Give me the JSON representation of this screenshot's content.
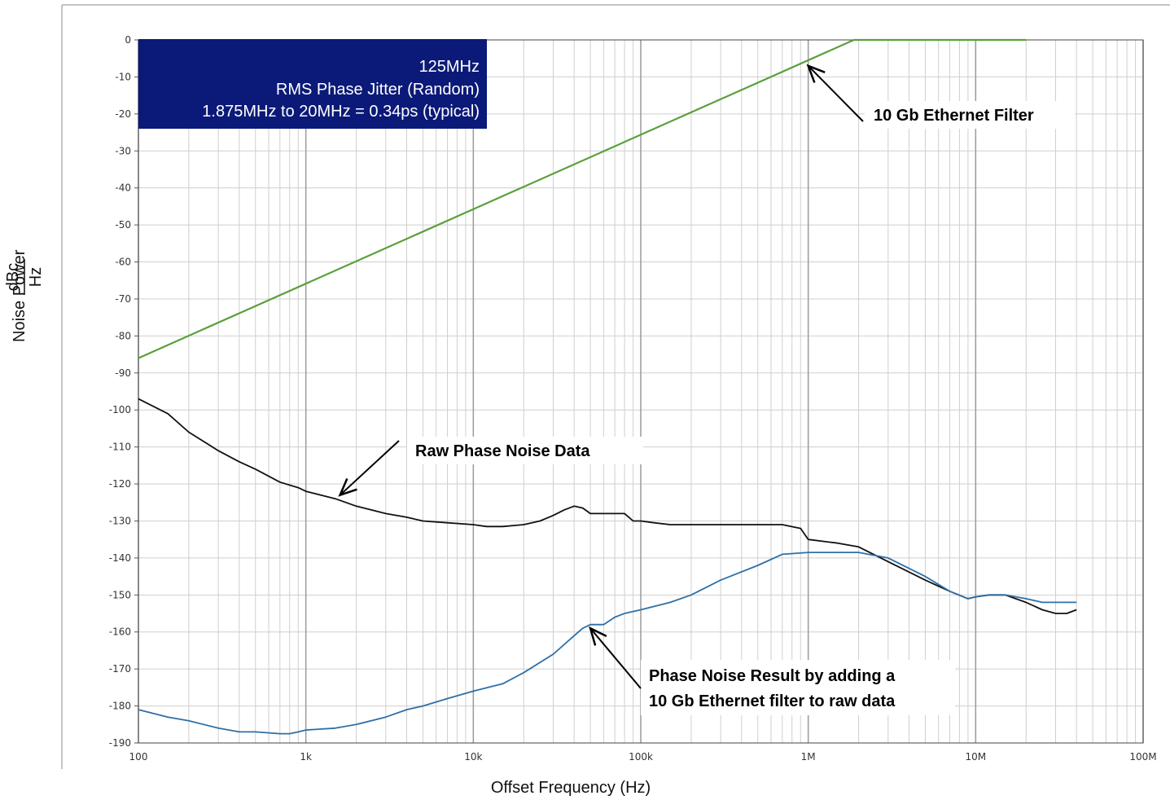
{
  "chart_data": {
    "type": "line",
    "title": "",
    "xlabel": "Offset Frequency (Hz)",
    "ylabel": "Noise Power",
    "ylabel_unit_numerator": "dBc",
    "ylabel_unit_denominator": "Hz",
    "x_scale": "log",
    "xlim": [
      100,
      100000000
    ],
    "ylim": [
      -190,
      0
    ],
    "x_ticks": [
      {
        "value": 100,
        "label": "100"
      },
      {
        "value": 1000,
        "label": "1k"
      },
      {
        "value": 10000,
        "label": "10k"
      },
      {
        "value": 100000,
        "label": "100k"
      },
      {
        "value": 1000000,
        "label": "1M"
      },
      {
        "value": 10000000,
        "label": "10M"
      },
      {
        "value": 100000000,
        "label": "100M"
      }
    ],
    "y_ticks": [
      0,
      -10,
      -20,
      -30,
      -40,
      -50,
      -60,
      -70,
      -80,
      -90,
      -100,
      -110,
      -120,
      -130,
      -140,
      -150,
      -160,
      -170,
      -180,
      -190
    ],
    "grid": true,
    "legend": "none",
    "info_box": {
      "lines": [
        "125MHz",
        "RMS Phase Jitter (Random)",
        "1.875MHz to 20MHz = 0.34ps (typical)"
      ],
      "background": "#0b1a78",
      "text_color": "#ffffff"
    },
    "annotations": [
      {
        "id": "filter",
        "lines": [
          "10 Gb Ethernet Filter"
        ],
        "arrow_to": [
          1000000,
          -7
        ]
      },
      {
        "id": "raw",
        "lines": [
          "Raw Phase Noise Data"
        ],
        "arrow_to": [
          1600,
          -123
        ]
      },
      {
        "id": "result",
        "lines": [
          "Phase Noise Result by adding a",
          "10 Gb Ethernet filter to raw data"
        ],
        "arrow_to": [
          50000,
          -159
        ]
      }
    ],
    "series": [
      {
        "id": "filter",
        "color": "#5aa03c",
        "x": [
          100,
          1875000,
          20000000
        ],
        "y": [
          -86,
          0,
          0
        ]
      },
      {
        "id": "raw",
        "color": "#111111",
        "x": [
          100,
          150,
          200,
          300,
          400,
          500,
          700,
          900,
          1000,
          1500,
          2000,
          3000,
          4000,
          5000,
          7000,
          10000,
          12000,
          15000,
          20000,
          25000,
          30000,
          35000,
          40000,
          45000,
          50000,
          55000,
          60000,
          70000,
          80000,
          90000,
          100000,
          120000,
          150000,
          200000,
          300000,
          500000,
          700000,
          900000,
          1000000,
          1500000,
          2000000,
          3000000,
          5000000,
          7000000,
          9000000,
          10000000,
          12000000,
          15000000,
          20000000,
          25000000,
          30000000,
          35000000,
          40000000
        ],
        "y": [
          -97,
          -101,
          -106,
          -111,
          -114,
          -116,
          -119.5,
          -121,
          -122,
          -124,
          -126,
          -128,
          -129,
          -130,
          -130.5,
          -131,
          -131.5,
          -131.5,
          -131,
          -130,
          -128.5,
          -127,
          -126,
          -126.5,
          -128,
          -128,
          -128,
          -128,
          -128,
          -130,
          -130,
          -130.5,
          -131,
          -131,
          -131,
          -131,
          -131,
          -132,
          -135,
          -136,
          -137,
          -141,
          -146,
          -149,
          -151,
          -150.5,
          -150,
          -150,
          -152,
          -154,
          -155,
          -155,
          -154
        ]
      },
      {
        "id": "result",
        "color": "#2f6fa6",
        "x": [
          100,
          150,
          200,
          300,
          400,
          500,
          700,
          800,
          900,
          1000,
          1500,
          2000,
          3000,
          4000,
          5000,
          7000,
          10000,
          15000,
          20000,
          30000,
          40000,
          45000,
          50000,
          60000,
          70000,
          80000,
          100000,
          150000,
          200000,
          300000,
          500000,
          700000,
          1000000,
          1500000,
          2000000,
          3000000,
          5000000,
          7000000,
          9000000,
          10000000,
          12000000,
          15000000,
          20000000,
          25000000,
          30000000,
          40000000
        ],
        "y": [
          -181,
          -183,
          -184,
          -186,
          -187,
          -187,
          -187.5,
          -187.5,
          -187,
          -186.5,
          -186,
          -185,
          -183,
          -181,
          -180,
          -178,
          -176,
          -174,
          -171,
          -166,
          -161,
          -159,
          -158,
          -158,
          -156,
          -155,
          -154,
          -152,
          -150,
          -146,
          -142,
          -139,
          -138.5,
          -138.5,
          -138.5,
          -140,
          -145,
          -149,
          -151,
          -150.5,
          -150,
          -150,
          -151,
          -152,
          -152,
          -152
        ]
      }
    ]
  }
}
